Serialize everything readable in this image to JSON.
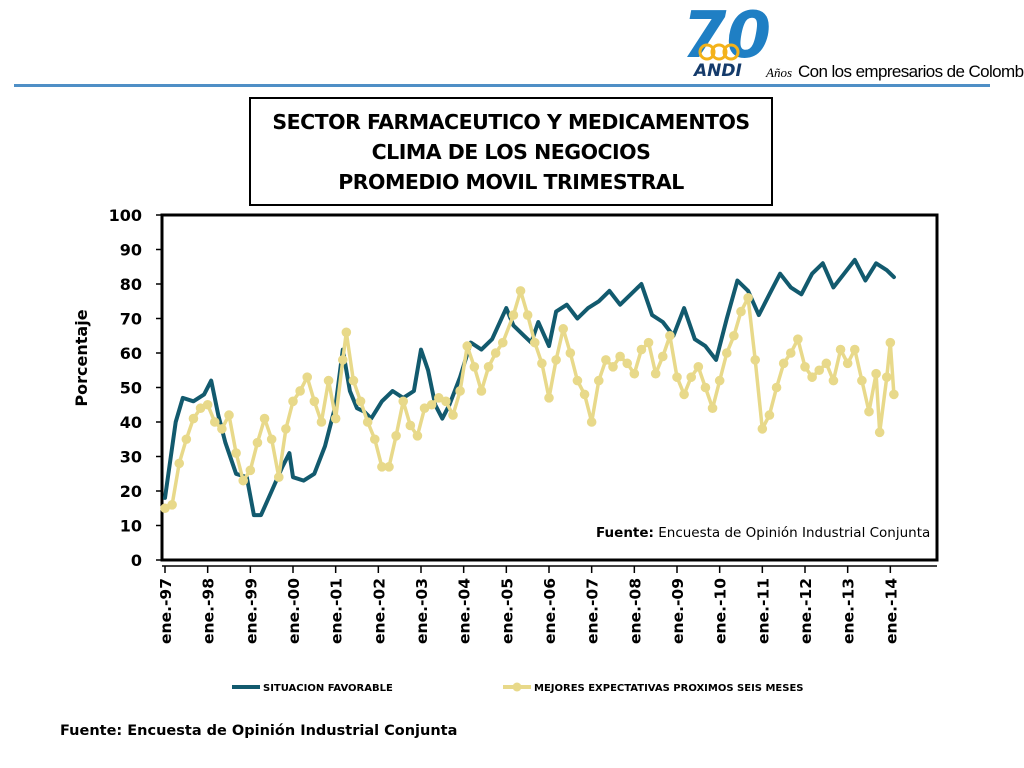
{
  "logo": {
    "number": "70",
    "wordmark": "ANDI",
    "years_word": "Años",
    "tagline": "Con los empresarios de Colombia",
    "colors": {
      "seventy": "#1f7fc4",
      "andi": "#153b6b",
      "circles": "#f3b21a"
    }
  },
  "title_lines": [
    "SECTOR FARMACEUTICO Y MEDICAMENTOS",
    "CLIMA DE LOS NEGOCIOS",
    "PROMEDIO MOVIL TRIMESTRAL"
  ],
  "footer_source": "Fuente: Encuesta de Opinión Industrial Conjunta",
  "chart_data": {
    "type": "line",
    "ylabel": "Porcentaje",
    "ylim": [
      0,
      100
    ],
    "yticks": [
      0,
      10,
      20,
      30,
      40,
      50,
      60,
      70,
      80,
      90,
      100
    ],
    "x_start": "1997-01",
    "x_end": "2014-02",
    "xtick_labels": [
      "ene.-97",
      "ene.-98",
      "ene.-99",
      "ene.-00",
      "ene.-01",
      "ene.-02",
      "ene.-03",
      "ene.-04",
      "ene.-05",
      "ene.-06",
      "ene.-07",
      "ene.-08",
      "ene.-09",
      "ene.-10",
      "ene.-11",
      "ene.-12",
      "ene.-13",
      "ene.-14"
    ],
    "annotation": {
      "label_bold": "Fuente:",
      "label_rest": " Encuesta de Opinión Industrial Conjunta"
    },
    "grid": false,
    "legend_position": "bottom",
    "series": [
      {
        "name": "SITUACION FAVORABLE",
        "color": "#125a6e",
        "marker": "none",
        "points": [
          [
            "1997-01",
            18
          ],
          [
            "1997-04",
            40
          ],
          [
            "1997-06",
            47
          ],
          [
            "1997-09",
            46
          ],
          [
            "1997-12",
            48
          ],
          [
            "1998-02",
            52
          ],
          [
            "1998-04",
            42
          ],
          [
            "1998-06",
            34
          ],
          [
            "1998-09",
            25
          ],
          [
            "1998-12",
            24
          ],
          [
            "1999-02",
            13
          ],
          [
            "1999-04",
            13
          ],
          [
            "1999-07",
            20
          ],
          [
            "1999-10",
            27
          ],
          [
            "1999-12",
            31
          ],
          [
            "2000-01",
            24
          ],
          [
            "2000-04",
            23
          ],
          [
            "2000-07",
            25
          ],
          [
            "2000-10",
            33
          ],
          [
            "2001-01",
            45
          ],
          [
            "2001-03",
            61
          ],
          [
            "2001-05",
            49
          ],
          [
            "2001-07",
            44
          ],
          [
            "2001-09",
            43
          ],
          [
            "2001-11",
            41
          ],
          [
            "2002-02",
            46
          ],
          [
            "2002-05",
            49
          ],
          [
            "2002-08",
            47
          ],
          [
            "2002-11",
            49
          ],
          [
            "2003-01",
            61
          ],
          [
            "2003-03",
            55
          ],
          [
            "2003-05",
            45
          ],
          [
            "2003-07",
            41
          ],
          [
            "2003-09",
            45
          ],
          [
            "2003-12",
            53
          ],
          [
            "2004-03",
            63
          ],
          [
            "2004-06",
            61
          ],
          [
            "2004-09",
            64
          ],
          [
            "2005-01",
            73
          ],
          [
            "2005-03",
            68
          ],
          [
            "2005-06",
            65
          ],
          [
            "2005-08",
            63
          ],
          [
            "2005-10",
            69
          ],
          [
            "2006-01",
            62
          ],
          [
            "2006-03",
            72
          ],
          [
            "2006-06",
            74
          ],
          [
            "2006-09",
            70
          ],
          [
            "2006-12",
            73
          ],
          [
            "2007-03",
            75
          ],
          [
            "2007-06",
            78
          ],
          [
            "2007-09",
            74
          ],
          [
            "2007-12",
            77
          ],
          [
            "2008-03",
            80
          ],
          [
            "2008-06",
            71
          ],
          [
            "2008-09",
            69
          ],
          [
            "2008-12",
            65
          ],
          [
            "2009-03",
            73
          ],
          [
            "2009-06",
            64
          ],
          [
            "2009-09",
            62
          ],
          [
            "2009-12",
            58
          ],
          [
            "2010-03",
            70
          ],
          [
            "2010-06",
            81
          ],
          [
            "2010-09",
            78
          ],
          [
            "2010-12",
            71
          ],
          [
            "2011-03",
            77
          ],
          [
            "2011-06",
            83
          ],
          [
            "2011-09",
            79
          ],
          [
            "2011-12",
            77
          ],
          [
            "2012-03",
            83
          ],
          [
            "2012-06",
            86
          ],
          [
            "2012-09",
            79
          ],
          [
            "2012-12",
            83
          ],
          [
            "2013-03",
            87
          ],
          [
            "2013-06",
            81
          ],
          [
            "2013-09",
            86
          ],
          [
            "2013-12",
            84
          ],
          [
            "2014-02",
            82
          ]
        ]
      },
      {
        "name": "MEJORES EXPECTATIVAS PROXIMOS SEIS MESES",
        "color": "#e8d98a",
        "marker": "circle",
        "points": [
          [
            "1997-01",
            15
          ],
          [
            "1997-03",
            16
          ],
          [
            "1997-05",
            28
          ],
          [
            "1997-07",
            35
          ],
          [
            "1997-09",
            41
          ],
          [
            "1997-11",
            44
          ],
          [
            "1998-01",
            45
          ],
          [
            "1998-03",
            40
          ],
          [
            "1998-05",
            38
          ],
          [
            "1998-07",
            42
          ],
          [
            "1998-09",
            31
          ],
          [
            "1998-11",
            23
          ],
          [
            "1999-01",
            26
          ],
          [
            "1999-03",
            34
          ],
          [
            "1999-05",
            41
          ],
          [
            "1999-07",
            35
          ],
          [
            "1999-09",
            24
          ],
          [
            "1999-11",
            38
          ],
          [
            "2000-01",
            46
          ],
          [
            "2000-03",
            49
          ],
          [
            "2000-05",
            53
          ],
          [
            "2000-07",
            46
          ],
          [
            "2000-09",
            40
          ],
          [
            "2000-11",
            52
          ],
          [
            "2001-01",
            41
          ],
          [
            "2001-03",
            58
          ],
          [
            "2001-04",
            66
          ],
          [
            "2001-06",
            52
          ],
          [
            "2001-08",
            46
          ],
          [
            "2001-10",
            40
          ],
          [
            "2001-12",
            35
          ],
          [
            "2002-02",
            27
          ],
          [
            "2002-04",
            27
          ],
          [
            "2002-06",
            36
          ],
          [
            "2002-08",
            46
          ],
          [
            "2002-10",
            39
          ],
          [
            "2002-12",
            36
          ],
          [
            "2003-02",
            44
          ],
          [
            "2003-04",
            45
          ],
          [
            "2003-06",
            47
          ],
          [
            "2003-08",
            46
          ],
          [
            "2003-10",
            42
          ],
          [
            "2003-12",
            49
          ],
          [
            "2004-02",
            62
          ],
          [
            "2004-04",
            56
          ],
          [
            "2004-06",
            49
          ],
          [
            "2004-08",
            56
          ],
          [
            "2004-10",
            60
          ],
          [
            "2004-12",
            63
          ],
          [
            "2005-03",
            71
          ],
          [
            "2005-05",
            78
          ],
          [
            "2005-07",
            71
          ],
          [
            "2005-09",
            63
          ],
          [
            "2005-11",
            57
          ],
          [
            "2006-01",
            47
          ],
          [
            "2006-03",
            58
          ],
          [
            "2006-05",
            67
          ],
          [
            "2006-07",
            60
          ],
          [
            "2006-09",
            52
          ],
          [
            "2006-11",
            48
          ],
          [
            "2007-01",
            40
          ],
          [
            "2007-03",
            52
          ],
          [
            "2007-05",
            58
          ],
          [
            "2007-07",
            56
          ],
          [
            "2007-09",
            59
          ],
          [
            "2007-11",
            57
          ],
          [
            "2008-01",
            54
          ],
          [
            "2008-03",
            61
          ],
          [
            "2008-05",
            63
          ],
          [
            "2008-07",
            54
          ],
          [
            "2008-09",
            59
          ],
          [
            "2008-11",
            65
          ],
          [
            "2009-01",
            53
          ],
          [
            "2009-03",
            48
          ],
          [
            "2009-05",
            53
          ],
          [
            "2009-07",
            56
          ],
          [
            "2009-09",
            50
          ],
          [
            "2009-11",
            44
          ],
          [
            "2010-01",
            52
          ],
          [
            "2010-03",
            60
          ],
          [
            "2010-05",
            65
          ],
          [
            "2010-07",
            72
          ],
          [
            "2010-09",
            76
          ],
          [
            "2010-11",
            58
          ],
          [
            "2011-01",
            38
          ],
          [
            "2011-03",
            42
          ],
          [
            "2011-05",
            50
          ],
          [
            "2011-07",
            57
          ],
          [
            "2011-09",
            60
          ],
          [
            "2011-11",
            64
          ],
          [
            "2012-01",
            56
          ],
          [
            "2012-03",
            53
          ],
          [
            "2012-05",
            55
          ],
          [
            "2012-07",
            57
          ],
          [
            "2012-09",
            52
          ],
          [
            "2012-11",
            61
          ],
          [
            "2013-01",
            57
          ],
          [
            "2013-03",
            61
          ],
          [
            "2013-05",
            52
          ],
          [
            "2013-07",
            43
          ],
          [
            "2013-09",
            54
          ],
          [
            "2013-10",
            37
          ],
          [
            "2013-12",
            53
          ],
          [
            "2014-01",
            63
          ],
          [
            "2014-02",
            48
          ]
        ]
      }
    ]
  }
}
